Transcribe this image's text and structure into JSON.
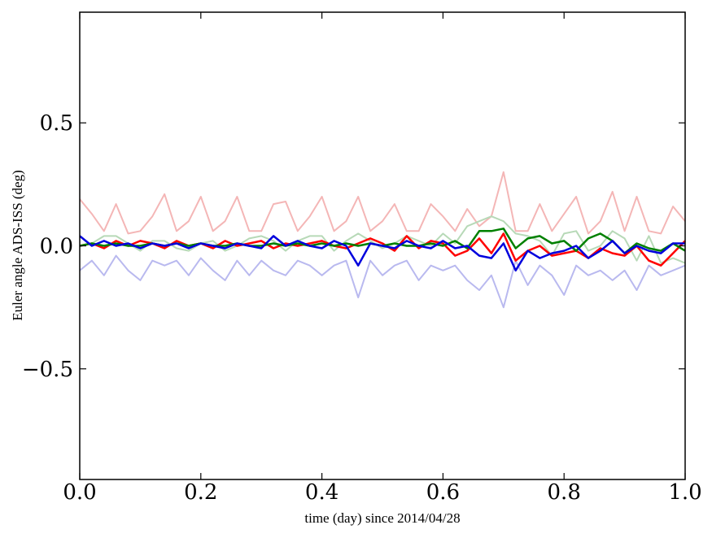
{
  "chart_data": {
    "type": "line",
    "xlabel": "time (day) since 2014/04/28",
    "ylabel": "Euler angle ADS-ISS (deg)",
    "xlim": [
      0.0,
      1.0
    ],
    "ylim": [
      -0.95,
      0.95
    ],
    "grid": false,
    "x_ticks": [
      {
        "value": 0.0,
        "label": "0.0"
      },
      {
        "value": 0.2,
        "label": "0.2"
      },
      {
        "value": 0.4,
        "label": "0.4"
      },
      {
        "value": 0.6,
        "label": "0.6"
      },
      {
        "value": 0.8,
        "label": "0.8"
      },
      {
        "value": 1.0,
        "label": "1.0"
      }
    ],
    "y_ticks": [
      {
        "value": -0.5,
        "label": "−0.5"
      },
      {
        "value": 0.0,
        "label": "0.0"
      },
      {
        "value": 0.5,
        "label": "0.5"
      }
    ],
    "x": [
      0.0,
      0.02,
      0.04,
      0.06,
      0.08,
      0.1,
      0.12,
      0.14,
      0.16,
      0.18,
      0.2,
      0.22,
      0.24,
      0.26,
      0.28,
      0.3,
      0.32,
      0.34,
      0.36,
      0.38,
      0.4,
      0.42,
      0.44,
      0.46,
      0.48,
      0.5,
      0.52,
      0.54,
      0.56,
      0.58,
      0.6,
      0.62,
      0.64,
      0.66,
      0.68,
      0.7,
      0.72,
      0.74,
      0.76,
      0.78,
      0.8,
      0.82,
      0.84,
      0.86,
      0.88,
      0.9,
      0.92,
      0.94,
      0.96,
      0.98,
      1.0
    ],
    "series": [
      {
        "color": "#f4b6b6",
        "width": 2,
        "values": [
          0.19,
          0.13,
          0.06,
          0.17,
          0.05,
          0.06,
          0.12,
          0.21,
          0.06,
          0.1,
          0.2,
          0.06,
          0.1,
          0.2,
          0.06,
          0.06,
          0.17,
          0.18,
          0.06,
          0.12,
          0.2,
          0.06,
          0.1,
          0.2,
          0.06,
          0.1,
          0.17,
          0.06,
          0.06,
          0.17,
          0.12,
          0.06,
          0.15,
          0.08,
          0.12,
          0.3,
          0.06,
          0.06,
          0.17,
          0.06,
          0.13,
          0.2,
          0.05,
          0.1,
          0.22,
          0.06,
          0.2,
          0.06,
          0.05,
          0.16,
          0.1
        ]
      },
      {
        "color": "#b7d9b7",
        "width": 2,
        "values": [
          0.0,
          0.01,
          0.04,
          0.04,
          0.01,
          -0.02,
          0.02,
          0.02,
          -0.01,
          -0.02,
          0.01,
          0.02,
          -0.02,
          0.0,
          0.03,
          0.04,
          0.02,
          -0.02,
          0.02,
          0.04,
          0.04,
          -0.02,
          0.02,
          0.05,
          0.02,
          -0.01,
          0.01,
          0.04,
          0.02,
          0.0,
          0.05,
          0.01,
          0.08,
          0.1,
          0.12,
          0.1,
          0.05,
          0.04,
          0.02,
          -0.04,
          0.05,
          0.06,
          -0.02,
          0.0,
          0.06,
          0.03,
          -0.06,
          0.04,
          -0.07,
          -0.05,
          -0.07
        ]
      },
      {
        "color": "#b9b9ef",
        "width": 2,
        "values": [
          -0.1,
          -0.06,
          -0.12,
          -0.04,
          -0.1,
          -0.14,
          -0.06,
          -0.08,
          -0.06,
          -0.12,
          -0.05,
          -0.1,
          -0.14,
          -0.06,
          -0.12,
          -0.06,
          -0.1,
          -0.12,
          -0.06,
          -0.08,
          -0.12,
          -0.08,
          -0.06,
          -0.21,
          -0.06,
          -0.12,
          -0.08,
          -0.06,
          -0.14,
          -0.08,
          -0.1,
          -0.08,
          -0.14,
          -0.18,
          -0.12,
          -0.25,
          -0.06,
          -0.16,
          -0.08,
          -0.12,
          -0.2,
          -0.08,
          -0.12,
          -0.1,
          -0.14,
          -0.1,
          -0.18,
          -0.08,
          -0.12,
          -0.1,
          -0.08
        ]
      },
      {
        "color": "#ff0000",
        "width": 2.5,
        "values": [
          0.0,
          0.01,
          -0.01,
          0.02,
          0.0,
          0.02,
          0.01,
          -0.01,
          0.02,
          0.0,
          0.01,
          -0.01,
          0.02,
          0.0,
          0.01,
          0.02,
          -0.01,
          0.01,
          0.0,
          0.01,
          0.02,
          0.0,
          -0.01,
          0.01,
          0.03,
          0.01,
          -0.02,
          0.04,
          -0.01,
          0.02,
          0.01,
          -0.04,
          -0.02,
          0.03,
          -0.03,
          0.05,
          -0.06,
          -0.02,
          0.0,
          -0.04,
          -0.03,
          -0.02,
          -0.05,
          -0.01,
          -0.03,
          -0.04,
          0.0,
          -0.06,
          -0.08,
          -0.03,
          0.02
        ]
      },
      {
        "color": "#008000",
        "width": 2.5,
        "values": [
          0.0,
          0.01,
          0.0,
          0.01,
          0.0,
          0.0,
          0.01,
          0.0,
          0.01,
          0.0,
          0.01,
          0.0,
          0.0,
          0.01,
          0.0,
          0.0,
          0.01,
          0.0,
          0.01,
          0.0,
          0.01,
          0.0,
          0.01,
          0.0,
          0.01,
          0.0,
          0.01,
          0.0,
          0.0,
          0.01,
          0.0,
          0.02,
          -0.01,
          0.06,
          0.06,
          0.07,
          -0.01,
          0.03,
          0.04,
          0.01,
          0.02,
          -0.02,
          0.03,
          0.05,
          0.02,
          -0.03,
          0.01,
          -0.01,
          -0.02,
          0.01,
          -0.02
        ]
      },
      {
        "color": "#0000dd",
        "width": 2.5,
        "values": [
          0.04,
          0.0,
          0.02,
          0.0,
          0.01,
          -0.01,
          0.01,
          0.0,
          0.01,
          -0.01,
          0.01,
          0.0,
          -0.01,
          0.01,
          0.0,
          -0.01,
          0.04,
          0.0,
          0.02,
          0.0,
          -0.01,
          0.02,
          0.0,
          -0.08,
          0.01,
          0.0,
          -0.01,
          0.02,
          0.0,
          -0.01,
          0.02,
          -0.01,
          0.0,
          -0.04,
          -0.05,
          0.01,
          -0.1,
          -0.02,
          -0.05,
          -0.03,
          -0.02,
          0.0,
          -0.05,
          -0.02,
          0.02,
          -0.03,
          0.0,
          -0.02,
          -0.03,
          0.01,
          0.01
        ]
      }
    ]
  }
}
